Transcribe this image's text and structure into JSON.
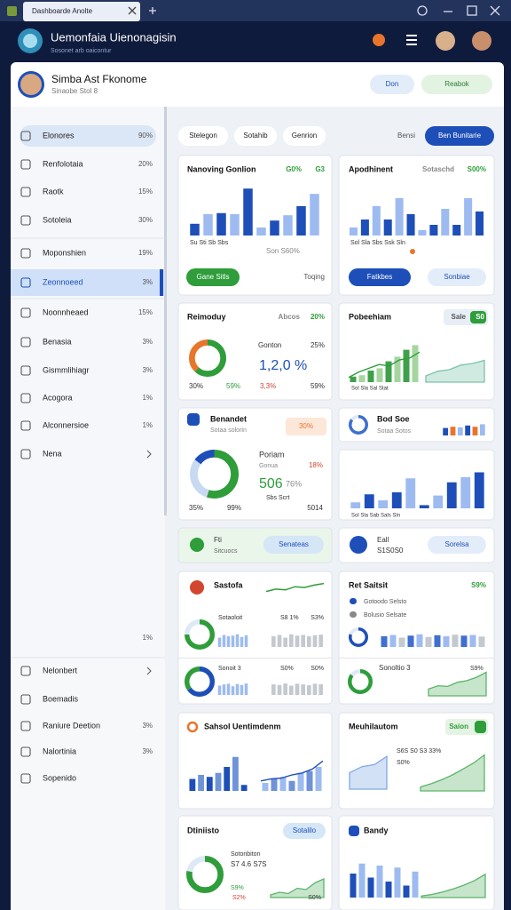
{
  "browser": {
    "tab": "Dashboarde Anolte"
  },
  "header": {
    "title": "Uemonfaia Uienonagisin",
    "subtitle": "Sosonet arb oaicontur"
  },
  "profile": {
    "name": "Simba Ast Fkonome",
    "subtitle": "Sinaobe Stol 8",
    "buttons": [
      "Don",
      "Reabok"
    ]
  },
  "sidebar": {
    "items": [
      {
        "label": "Elonores",
        "value": "90%",
        "highlight": true
      },
      {
        "label": "Renfolotaia",
        "value": "20%"
      },
      {
        "label": "Raotk",
        "value": "15%"
      },
      {
        "label": "Sotoleia",
        "value": "30%"
      },
      {
        "label": "Moponshien",
        "value": "19%"
      },
      {
        "label": "Zeonnoeed",
        "value": "3%",
        "active": true
      },
      {
        "label": "Noonnheaed",
        "value": "15%"
      },
      {
        "label": "Benasia",
        "value": "3%"
      },
      {
        "label": "Gismmlihiagr",
        "value": "3%"
      },
      {
        "label": "Acogora",
        "value": "1%"
      },
      {
        "label": "Alconnersioe",
        "value": "1%"
      },
      {
        "label": "Nena",
        "chevron": true
      }
    ],
    "note": "1%",
    "bottom_items": [
      {
        "label": "Nelonbert",
        "chevron": true
      },
      {
        "label": "Boemadis"
      },
      {
        "label": "Raniure Deetion",
        "value": "3%"
      },
      {
        "label": "Nalortinia",
        "value": "3%"
      },
      {
        "label": "Sopenido"
      }
    ]
  },
  "toolbar": {
    "tabs": [
      "Stelegon",
      "Sotahib",
      "Genrion"
    ],
    "link": "Bensi",
    "button": "Ben Bunitarie"
  },
  "cards": [
    {
      "title": "Nanoving Gonlion",
      "stats": [
        "G0%",
        "G3"
      ],
      "charts": [
        {
          "kind": "bar",
          "values": [
            22,
            40,
            42,
            40,
            88,
            15,
            28,
            38,
            55,
            78
          ],
          "colors": [
            "#1e4fb8",
            "#9dbbf0"
          ]
        }
      ],
      "texts": [
        "Su   Sti   Sb   Sbs",
        "Son  S60%"
      ],
      "button": "Gane Sitls",
      "link": "Toqing"
    },
    {
      "title": "Apodhinent",
      "stats": [
        "Sotaschd",
        "S00%"
      ],
      "charts": [
        {
          "kind": "bar",
          "values": [
            15,
            30,
            55,
            30,
            70,
            40,
            10,
            20,
            50,
            20,
            70,
            45
          ],
          "colors": [
            "#9dbbf0",
            "#1e4fb8"
          ]
        }
      ],
      "texts": [
        "Sol   Sla   Sbs   Ssk   Sln"
      ],
      "button": "Fatkbes",
      "link": "Sonbiae"
    },
    {
      "title": "Reimoduy",
      "stats": [
        "Abcos",
        "20%"
      ],
      "charts": [
        {
          "kind": "donut",
          "values": [
            62,
            38
          ],
          "colors": [
            "#2e9d3a",
            "#e8752b"
          ]
        }
      ],
      "texts": [
        "Gonton",
        "25%",
        "1,2,0 %",
        "30%",
        "59%",
        "3,3%",
        "59%"
      ]
    },
    {
      "title": "Pobeehiam",
      "stats": [
        "Sale",
        "S0"
      ],
      "charts": [
        {
          "kind": "barline",
          "values": [
            12,
            15,
            25,
            30,
            45,
            55,
            70,
            80
          ],
          "values2": [
            10,
            22,
            30,
            38,
            35,
            48,
            52,
            65
          ],
          "colors": [
            "#3fa04a",
            "#a5d6a0",
            "#2e9d3a"
          ]
        },
        {
          "kind": "area",
          "values": [
            20,
            35,
            40,
            55,
            60,
            70
          ],
          "colors": [
            "#7cc4a8"
          ]
        }
      ],
      "texts": [
        "Sol  Sla  Sal  Stat"
      ]
    },
    {
      "title": "Benandet",
      "charts": [
        {
          "kind": "donut",
          "values": [
            55,
            30,
            15
          ],
          "colors": [
            "#2e9d3a",
            "#c8d9f2",
            "#1e4fb8"
          ]
        }
      ],
      "texts": [
        "Sotaa solorin",
        "30%",
        "Poriam",
        "Gonua",
        "18%",
        "506",
        "76%",
        "Sbs Scrt",
        "35%",
        "99%",
        "5014"
      ]
    },
    {
      "title": "Bod Soe",
      "charts": [
        {
          "kind": "donut",
          "values": [
            85,
            15
          ],
          "colors": [
            "#3f6fd0",
            "#dfe8f6"
          ]
        },
        {
          "kind": "bar",
          "values": [
            60,
            70,
            65,
            80,
            70,
            90
          ],
          "colors": [
            "#1e4fb8",
            "#e8752b",
            "#9dbbf0"
          ]
        }
      ],
      "texts": [
        "Sotaa Sotos"
      ]
    },
    {
      "charts": [
        {
          "kind": "bar",
          "values": [
            15,
            35,
            20,
            40,
            75,
            8,
            32,
            65,
            78,
            90
          ],
          "colors": [
            "#9dbbf0",
            "#1e4fb8"
          ]
        }
      ],
      "texts": [
        "Sol   Sla   Sab   Sals   Sln"
      ]
    },
    {
      "texts": [
        "Fti",
        "Sitcuocs"
      ],
      "button": "Senateas"
    },
    {
      "texts": [
        "Eall",
        "S1S0S0"
      ],
      "button": "Sorelsa"
    },
    {
      "title": "Sastofa",
      "charts": [
        {
          "kind": "line",
          "values": [
            30,
            45,
            40,
            60,
            55,
            70,
            80
          ],
          "colors": [
            "#2e9d3a"
          ]
        },
        {
          "kind": "donut",
          "values": [
            75,
            25
          ],
          "colors": [
            "#2e9d3a",
            "#dfe8f6"
          ]
        },
        {
          "kind": "bar",
          "values": [
            70,
            90,
            80,
            85,
            95,
            75,
            88
          ],
          "colors": [
            "#9dbbf0"
          ]
        },
        {
          "kind": "bar",
          "values": [
            80,
            90,
            70,
            95,
            85,
            90,
            80,
            88,
            92
          ],
          "colors": [
            "#c4c9d0"
          ]
        },
        {
          "kind": "donut",
          "values": [
            65,
            35
          ],
          "colors": [
            "#1e4fb8",
            "#2e9d3a"
          ]
        },
        {
          "kind": "bar",
          "values": [
            75,
            85,
            90,
            70,
            88,
            80,
            92
          ],
          "colors": [
            "#9dbbf0"
          ]
        },
        {
          "kind": "bar",
          "values": [
            85,
            80,
            92,
            75,
            90,
            85,
            78,
            90,
            86
          ],
          "colors": [
            "#c4c9d0"
          ]
        }
      ],
      "texts": [
        "Sotaoloit",
        "S8 1%",
        "S3%",
        "Sonoit 3",
        "S0%",
        "S0%"
      ]
    },
    {
      "title": "Ret Saitsit",
      "stats": [
        "S9%"
      ],
      "charts": [
        {
          "kind": "donut",
          "values": [
            80,
            20
          ],
          "colors": [
            "#1e4fb8",
            "#dfe8f6"
          ]
        },
        {
          "kind": "bar",
          "values": [
            80,
            90,
            70,
            85,
            95,
            75,
            88,
            80,
            92,
            85,
            90,
            78
          ],
          "colors": [
            "#3f6fd0",
            "#9dbbf0",
            "#c4c9d0"
          ]
        },
        {
          "kind": "donut",
          "values": [
            85,
            15
          ],
          "colors": [
            "#2e9d3a",
            "#dfe8f6"
          ]
        },
        {
          "kind": "area",
          "values": [
            20,
            30,
            28,
            40,
            45,
            55,
            70
          ],
          "colors": [
            "#5cb46a"
          ]
        }
      ],
      "texts": [
        "Gotoodo Selsto",
        "Bolusio Selsate",
        "Sonoltio 3",
        "S9%"
      ]
    },
    {
      "title": "Sahsol Uentimdenm",
      "charts": [
        {
          "kind": "bar",
          "values": [
            30,
            40,
            35,
            45,
            60,
            85,
            15
          ],
          "colors": [
            "#1e4fb8",
            "#6f93d8"
          ]
        },
        {
          "kind": "barline",
          "values": [
            20,
            30,
            35,
            25,
            45,
            50,
            60
          ],
          "values2": [
            25,
            30,
            32,
            40,
            45,
            55,
            75
          ],
          "colors": [
            "#9dbbf0",
            "#6f93d8",
            "#1e4fb8"
          ]
        }
      ]
    },
    {
      "title": "Meuhilautom",
      "stats": [
        "Saion"
      ],
      "charts": [
        {
          "kind": "area",
          "values": [
            40,
            55,
            60,
            80
          ],
          "colors": [
            "#7fa8e6"
          ]
        },
        {
          "kind": "area",
          "values": [
            10,
            18,
            28,
            40,
            55,
            70,
            90
          ],
          "colors": [
            "#5cb46a"
          ]
        }
      ],
      "texts": [
        "S6S  S0  S3  33%",
        "S0%"
      ]
    },
    {
      "title": "Dtiniisto",
      "charts": [
        {
          "kind": "donut",
          "values": [
            78,
            22
          ],
          "colors": [
            "#2e9d3a",
            "#dfe8f6"
          ]
        },
        {
          "kind": "area",
          "values": [
            10,
            20,
            15,
            35,
            30,
            55,
            70
          ],
          "colors": [
            "#5cb46a"
          ]
        }
      ],
      "texts": [
        "Sotonbiton",
        "S7 4.6 S7S",
        "S9%",
        "S2%",
        "S0%"
      ],
      "button": "Sotalilo"
    },
    {
      "title": "Bandy",
      "charts": [
        {
          "kind": "bar",
          "values": [
            60,
            85,
            50,
            80,
            40,
            75,
            30,
            65
          ],
          "colors": [
            "#1e4fb8",
            "#9dbbf0"
          ]
        },
        {
          "kind": "area",
          "values": [
            5,
            10,
            18,
            28,
            40,
            55,
            75
          ],
          "colors": [
            "#5cb46a"
          ]
        }
      ]
    }
  ]
}
